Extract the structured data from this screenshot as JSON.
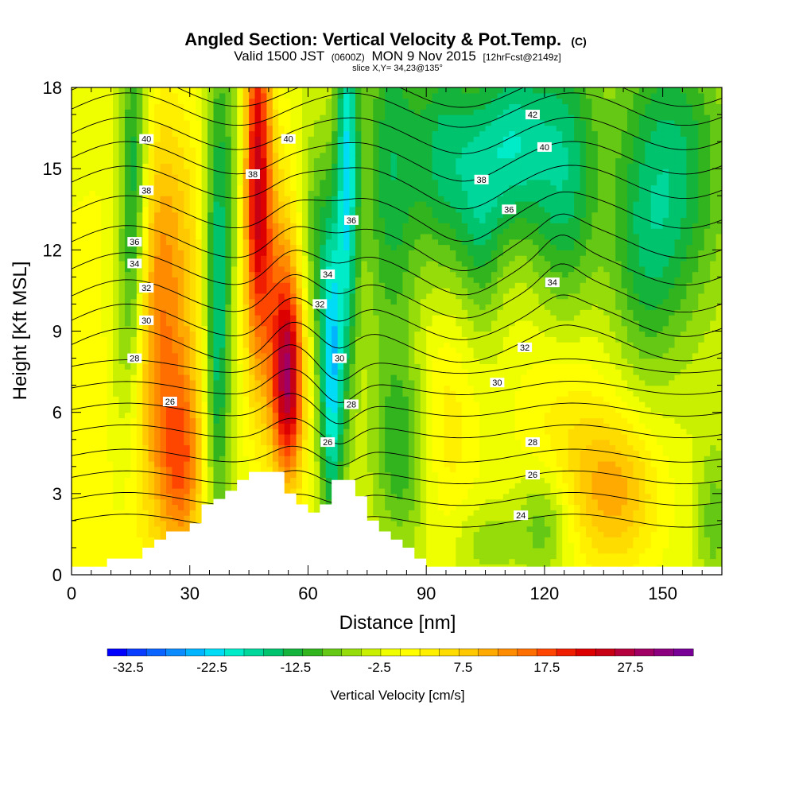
{
  "chart_data": {
    "type": "heatmap",
    "title": "Angled Section: Vertical Velocity & Pot.Temp.",
    "title_mark": "(C)",
    "subtitle": {
      "valid": "Valid 1500 JST",
      "zulu": "(0600Z)",
      "date": "MON 9 Nov 2015",
      "forecast": "[12hrFcst@2149z]"
    },
    "slice": "slice X,Y= 34,23@135°",
    "xlabel": "Distance [nm]",
    "ylabel": "Height [Kft MSL]",
    "xlim": [
      0,
      165
    ],
    "ylim": [
      0,
      18
    ],
    "xticks": [
      "0",
      "30",
      "60",
      "90",
      "120",
      "150"
    ],
    "yticks": [
      "0",
      "3",
      "6",
      "9",
      "12",
      "15",
      "18"
    ],
    "colorbar": {
      "title": "Vertical Velocity [cm/s]",
      "range": [
        -35,
        35
      ],
      "step": 2.5,
      "tick_labels": [
        "-32.5",
        "-22.5",
        "-12.5",
        "-2.5",
        "7.5",
        "17.5",
        "27.5"
      ],
      "colors": [
        "#0000ff",
        "#0a3cff",
        "#0a64ff",
        "#0a8cff",
        "#00b4ff",
        "#00dcf5",
        "#00ebc8",
        "#00d79b",
        "#00c36e",
        "#14b43c",
        "#32b41e",
        "#64c814",
        "#96dc0a",
        "#c8f000",
        "#f0ff00",
        "#ffff00",
        "#fff000",
        "#ffdc00",
        "#ffc800",
        "#ffaa00",
        "#ff8c00",
        "#ff6e00",
        "#ff4600",
        "#f01e00",
        "#dc0000",
        "#c80014",
        "#b4003c",
        "#a00064",
        "#8c0080",
        "#780096"
      ]
    },
    "wind_centers": [
      {
        "x": 0,
        "y": 6,
        "amp": 3,
        "sx": 12,
        "sy": 8
      },
      {
        "x": 22,
        "y": 8,
        "amp": 13,
        "sx": 7,
        "sy": 5
      },
      {
        "x": 28,
        "y": 4,
        "amp": 14,
        "sx": 4,
        "sy": 2.5
      },
      {
        "x": 24,
        "y": 13,
        "amp": 6,
        "sx": 7,
        "sy": 4
      },
      {
        "x": 16,
        "y": 14,
        "amp": -16,
        "sx": 2.5,
        "sy": 5
      },
      {
        "x": 13,
        "y": 9,
        "amp": -8,
        "sx": 3,
        "sy": 4
      },
      {
        "x": 37,
        "y": 10,
        "amp": -17,
        "sx": 2.2,
        "sy": 6
      },
      {
        "x": 42,
        "y": 16,
        "amp": -6,
        "sx": 3,
        "sy": 4
      },
      {
        "x": 47,
        "y": 15,
        "amp": 28,
        "sx": 2.6,
        "sy": 5
      },
      {
        "x": 55,
        "y": 7,
        "amp": 25,
        "sx": 2.8,
        "sy": 2.6
      },
      {
        "x": 53,
        "y": 10,
        "amp": 12,
        "sx": 4,
        "sy": 4
      },
      {
        "x": 66,
        "y": 7.5,
        "amp": -22,
        "sx": 2.2,
        "sy": 4
      },
      {
        "x": 62,
        "y": 12.5,
        "amp": -8,
        "sx": 3,
        "sy": 3
      },
      {
        "x": 70,
        "y": 15,
        "amp": -20,
        "sx": 2,
        "sy": 5
      },
      {
        "x": 81,
        "y": 15,
        "amp": -12,
        "sx": 5,
        "sy": 5
      },
      {
        "x": 84,
        "y": 4.5,
        "amp": -10,
        "sx": 5,
        "sy": 2.5
      },
      {
        "x": 95,
        "y": 15.5,
        "amp": -14,
        "sx": 6,
        "sy": 3
      },
      {
        "x": 104,
        "y": 13,
        "amp": -9,
        "sx": 4,
        "sy": 3
      },
      {
        "x": 112,
        "y": 16,
        "amp": -16,
        "sx": 6,
        "sy": 2.5
      },
      {
        "x": 125,
        "y": 15,
        "amp": -14,
        "sx": 6,
        "sy": 4
      },
      {
        "x": 152,
        "y": 15,
        "amp": -14,
        "sx": 10,
        "sy": 4
      },
      {
        "x": 145,
        "y": 11,
        "amp": -6,
        "sx": 6,
        "sy": 3
      },
      {
        "x": 138,
        "y": 3,
        "amp": 12,
        "sx": 8,
        "sy": 2
      },
      {
        "x": 125,
        "y": 5.5,
        "amp": 6,
        "sx": 9,
        "sy": 3
      },
      {
        "x": 95,
        "y": 5.5,
        "amp": 6,
        "sx": 6,
        "sy": 3
      },
      {
        "x": 120,
        "y": 2,
        "amp": -9,
        "sx": 5,
        "sy": 1.5
      },
      {
        "x": 163,
        "y": 2,
        "amp": -7,
        "sx": 3,
        "sy": 2
      },
      {
        "x": 105,
        "y": 1.2,
        "amp": -5,
        "sx": 6,
        "sy": 1
      }
    ],
    "terrain": [
      [
        0,
        0.3
      ],
      [
        3,
        0.3
      ],
      [
        6,
        0.3
      ],
      [
        9,
        0.6
      ],
      [
        12,
        0.6
      ],
      [
        15,
        0.6
      ],
      [
        18,
        1.0
      ],
      [
        21,
        1.3
      ],
      [
        24,
        1.6
      ],
      [
        27,
        1.6
      ],
      [
        30,
        1.9
      ],
      [
        33,
        2.6
      ],
      [
        36,
        2.8
      ],
      [
        39,
        3.1
      ],
      [
        42,
        3.5
      ],
      [
        45,
        3.8
      ],
      [
        48,
        3.8
      ],
      [
        51,
        3.8
      ],
      [
        54,
        3.0
      ],
      [
        57,
        2.6
      ],
      [
        60,
        2.3
      ],
      [
        63,
        2.6
      ],
      [
        66,
        3.5
      ],
      [
        69,
        3.5
      ],
      [
        72,
        2.9
      ],
      [
        75,
        2.0
      ],
      [
        78,
        1.6
      ],
      [
        81,
        1.3
      ],
      [
        84,
        1.0
      ],
      [
        87,
        0.6
      ],
      [
        90,
        0.3
      ],
      [
        165,
        0.3
      ]
    ],
    "theta_contours": [
      {
        "value": 24,
        "base": 2.0,
        "label_x": 114
      },
      {
        "value": 25,
        "base": 2.8
      },
      {
        "value": 26,
        "base": 3.6,
        "label_x": 117
      },
      {
        "value": 27,
        "base": 4.4
      },
      {
        "value": 28,
        "base": 5.3,
        "label_x": 117
      },
      {
        "value": 29,
        "base": 6.1
      },
      {
        "value": 30,
        "base": 6.9,
        "label_x": 108
      },
      {
        "value": 31,
        "base": 7.7
      },
      {
        "value": 32,
        "base": 8.5,
        "label_x": 115
      },
      {
        "value": 33,
        "base": 9.4
      },
      {
        "value": 34,
        "base": 10.3,
        "label_x": 122
      },
      {
        "value": 35,
        "base": 11.3
      },
      {
        "value": 36,
        "base": 12.3,
        "label_x": 111
      },
      {
        "value": 37,
        "base": 13.4
      },
      {
        "value": 38,
        "base": 14.5,
        "label_x": 104
      },
      {
        "value": 39,
        "base": 15.4
      },
      {
        "value": 40,
        "base": 16.3,
        "label_x": 120
      },
      {
        "value": 41,
        "base": 17.2
      },
      {
        "value": 42,
        "base": 17.9,
        "label_x": 117
      }
    ],
    "contour_labels": [
      {
        "text": "40",
        "x": 19,
        "y": 16.1
      },
      {
        "text": "40",
        "x": 55,
        "y": 16.1
      },
      {
        "text": "40",
        "x": 120,
        "y": 15.8
      },
      {
        "text": "42",
        "x": 117,
        "y": 17.0
      },
      {
        "text": "38",
        "x": 19,
        "y": 14.2
      },
      {
        "text": "38",
        "x": 46,
        "y": 14.8
      },
      {
        "text": "38",
        "x": 104,
        "y": 14.6
      },
      {
        "text": "36",
        "x": 16,
        "y": 12.3
      },
      {
        "text": "36",
        "x": 71,
        "y": 13.1
      },
      {
        "text": "36",
        "x": 111,
        "y": 13.5
      },
      {
        "text": "34",
        "x": 16,
        "y": 11.5
      },
      {
        "text": "34",
        "x": 65,
        "y": 11.1
      },
      {
        "text": "34",
        "x": 122,
        "y": 10.8
      },
      {
        "text": "32",
        "x": 19,
        "y": 10.6
      },
      {
        "text": "32",
        "x": 63,
        "y": 10.0
      },
      {
        "text": "32",
        "x": 115,
        "y": 8.4
      },
      {
        "text": "30",
        "x": 19,
        "y": 9.4
      },
      {
        "text": "30",
        "x": 68,
        "y": 8.0
      },
      {
        "text": "30",
        "x": 108,
        "y": 7.1
      },
      {
        "text": "28",
        "x": 16,
        "y": 8.0
      },
      {
        "text": "28",
        "x": 71,
        "y": 6.3
      },
      {
        "text": "28",
        "x": 117,
        "y": 4.9
      },
      {
        "text": "26",
        "x": 25,
        "y": 6.4
      },
      {
        "text": "26",
        "x": 65,
        "y": 4.9
      },
      {
        "text": "26",
        "x": 117,
        "y": 3.7
      },
      {
        "text": "24",
        "x": 114,
        "y": 2.2
      }
    ]
  }
}
